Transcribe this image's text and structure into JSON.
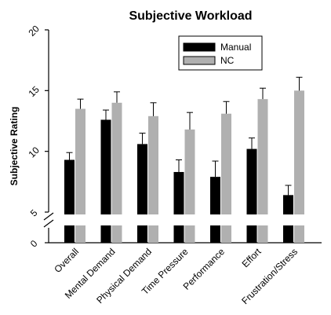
{
  "chart_data": {
    "type": "bar",
    "title": "Subjective Workload",
    "ylabel": "Subjective Rating",
    "xlabel": "",
    "ylim": [
      0,
      20
    ],
    "axis_break": [
      0,
      5
    ],
    "yticks": [
      "0",
      "5",
      "10",
      "15",
      "20"
    ],
    "categories": [
      "Overall",
      "Mental Demand",
      "Physical Demand",
      "Time Pressure",
      "Performance",
      "Effort",
      "Frustration/Stress"
    ],
    "series": [
      {
        "name": "Manual",
        "color": "#000000",
        "values": [
          9.3,
          12.6,
          10.6,
          8.3,
          7.9,
          10.2,
          6.4
        ],
        "errors": [
          0.6,
          0.8,
          0.9,
          1.0,
          1.3,
          0.9,
          0.8
        ]
      },
      {
        "name": "NC",
        "color": "#b0b0b0",
        "values": [
          13.5,
          14.0,
          12.9,
          11.8,
          13.1,
          14.3,
          15.0
        ],
        "errors": [
          0.8,
          0.9,
          1.1,
          1.4,
          1.0,
          0.9,
          1.1
        ]
      }
    ],
    "legend_position": "top-right",
    "grid": false
  }
}
